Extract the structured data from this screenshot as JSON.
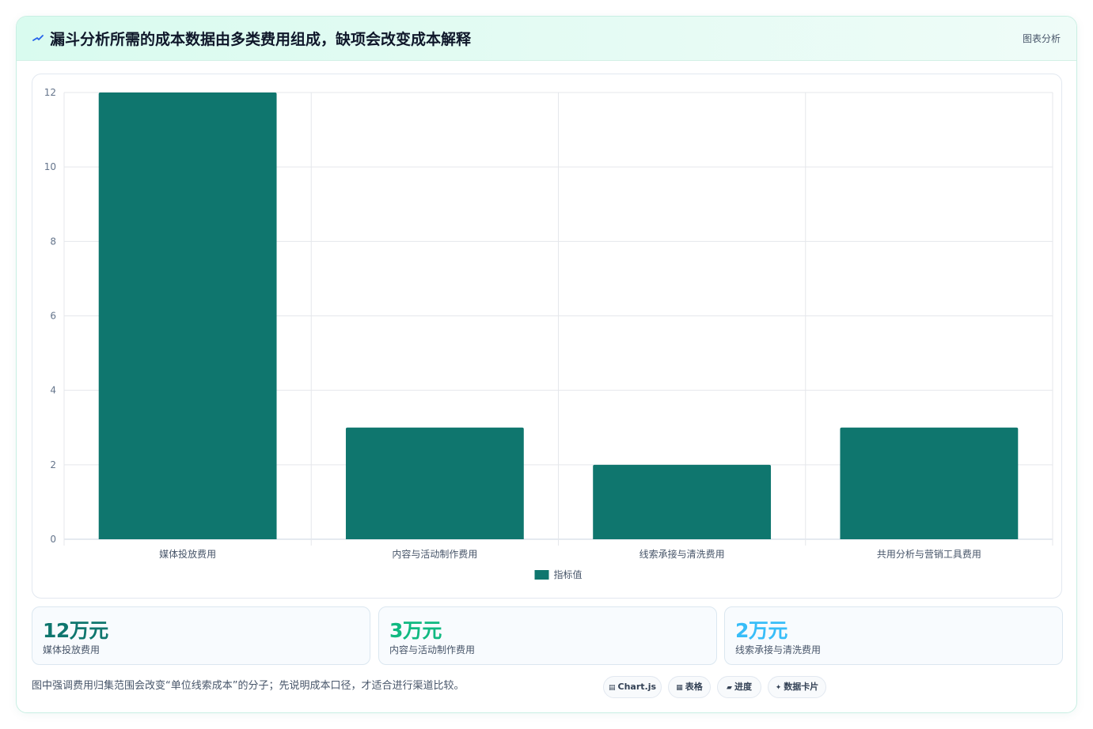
{
  "header": {
    "title": "漏斗分析所需的成本数据由多类费用组成，缺项会改变成本解释",
    "tag": "图表分析"
  },
  "chart_data": {
    "type": "bar",
    "categories": [
      "媒体投放费用",
      "内容与活动制作费用",
      "线索承接与清洗费用",
      "共用分析与营销工具费用"
    ],
    "series": [
      {
        "name": "指标值",
        "values": [
          12,
          3,
          2,
          3
        ]
      }
    ],
    "ylim": [
      0,
      12
    ],
    "yticks": [
      0,
      2,
      4,
      6,
      8,
      10,
      12
    ],
    "grid": true,
    "legend": "bottom",
    "color": "#0f766e"
  },
  "kpis": [
    {
      "value": "12万元",
      "label": "媒体投放费用",
      "color": "#0f766e"
    },
    {
      "value": "3万元",
      "label": "内容与活动制作费用",
      "color": "#10b981"
    },
    {
      "value": "2万元",
      "label": "线索承接与清洗费用",
      "color": "#38bdf8"
    }
  ],
  "note": "图中强调费用归集范围会改变“单位线索成本”的分子；先说明成本口径，才适合进行渠道比较。",
  "pills": [
    {
      "icon": "chart-icon",
      "glyph": "▤",
      "label": "Chart.js"
    },
    {
      "icon": "table-icon",
      "glyph": "▦",
      "label": "表格"
    },
    {
      "icon": "progress-icon",
      "glyph": "▰",
      "label": "进度"
    },
    {
      "icon": "data-card-icon",
      "glyph": "✦",
      "label": "数据卡片"
    }
  ]
}
